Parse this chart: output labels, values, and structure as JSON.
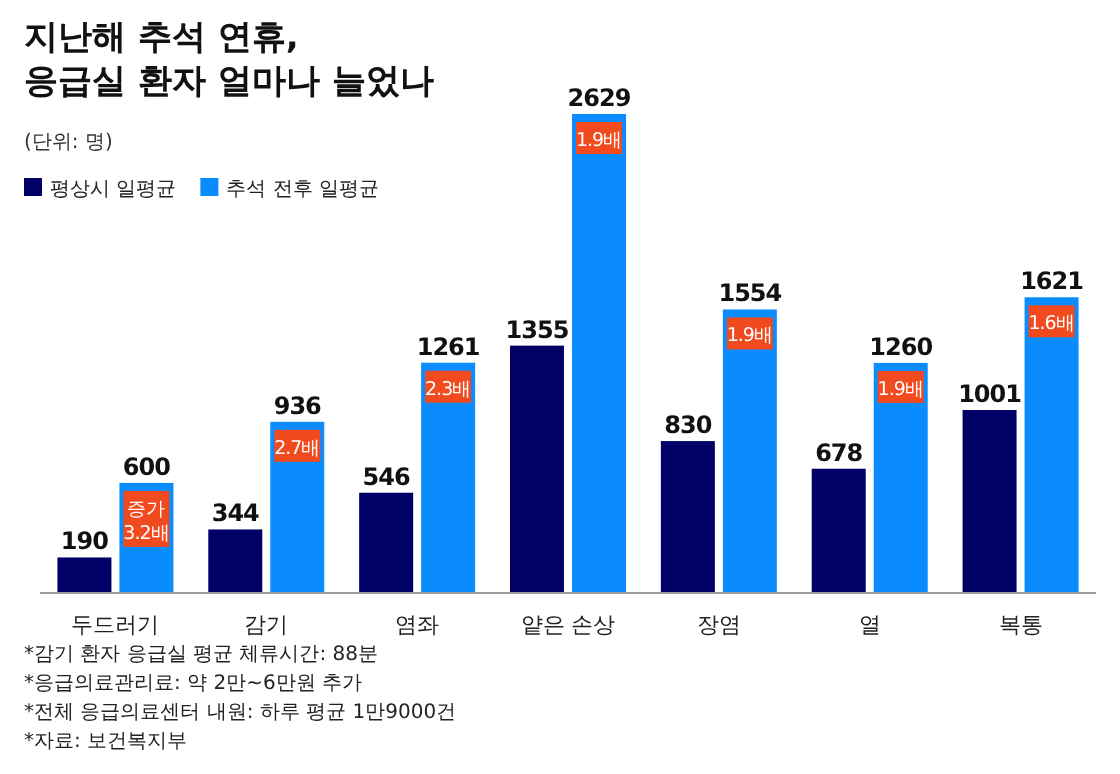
{
  "chart_data": {
    "type": "bar",
    "title": "지난해 추석 연휴,\n응급실 환자 얼마나 늘었나",
    "subtitle": "(단위: 명)",
    "categories": [
      "두드러기",
      "감기",
      "염좌",
      "얕은 손상",
      "장염",
      "열",
      "복통"
    ],
    "series": [
      {
        "name": "평상시 일평균",
        "color": "#000066",
        "values": [
          190,
          344,
          546,
          1355,
          830,
          678,
          1001
        ]
      },
      {
        "name": "추석 전후 일평균",
        "color": "#0a8cff",
        "values": [
          600,
          936,
          1261,
          2629,
          1554,
          1260,
          1621
        ]
      }
    ],
    "data_labels": true,
    "relative": false,
    "legend": "top left",
    "grid": false,
    "annotations": [
      {
        "text": "증가 3.2배",
        "x": "두드러기",
        "y": 600
      },
      {
        "text": "2.7배",
        "x": "감기",
        "y": 936
      },
      {
        "text": "2.3배",
        "x": "염좌",
        "y": 1261
      },
      {
        "text": "1.9배",
        "x": "얕은 손상",
        "y": 2629
      },
      {
        "text": "1.9배",
        "x": "장염",
        "y": 1554
      },
      {
        "text": "1.9배",
        "x": "열",
        "y": 1260
      },
      {
        "text": "1.6배",
        "x": "복통",
        "y": 1621
      },
      "*감기 환자 응급실 평균 체류시간: 88분",
      "*응급의료관리료: 약 2만~6만원 추가",
      "*전체 응급의료센터 내원: 하루 평균 1만9000건",
      "*자료: 보건복지부"
    ]
  }
}
